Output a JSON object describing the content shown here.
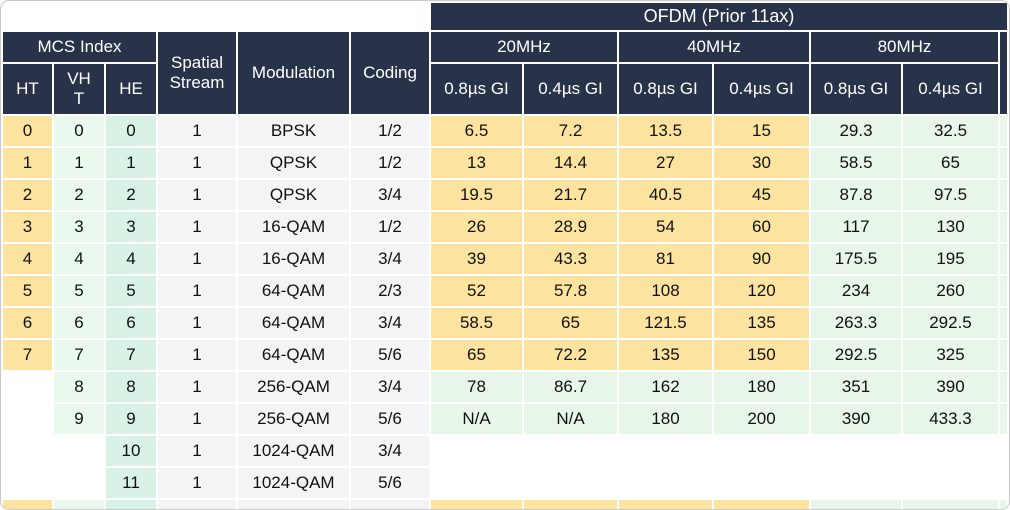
{
  "table": {
    "title_ofdm": "OFDM (Prior 11ax)",
    "mcs_index_label": "MCS Index",
    "col_ht": "HT",
    "col_vht": "VHT",
    "col_he": "HE",
    "col_spatial_stream": "Spatial Stream",
    "col_modulation": "Modulation",
    "col_coding": "Coding",
    "bands": [
      "20MHz",
      "40MHz",
      "80MHz"
    ],
    "gi_labels": [
      "0.8µs GI",
      "0.4µs GI"
    ]
  },
  "rows": [
    {
      "group": "ht",
      "ht": "0",
      "vht": "0",
      "he": "0",
      "ss": "1",
      "mod": "BPSK",
      "coding": "1/2",
      "rates": [
        "6.5",
        "7.2",
        "13.5",
        "15",
        "29.3",
        "32.5"
      ]
    },
    {
      "group": "ht",
      "ht": "1",
      "vht": "1",
      "he": "1",
      "ss": "1",
      "mod": "QPSK",
      "coding": "1/2",
      "rates": [
        "13",
        "14.4",
        "27",
        "30",
        "58.5",
        "65"
      ]
    },
    {
      "group": "ht",
      "ht": "2",
      "vht": "2",
      "he": "2",
      "ss": "1",
      "mod": "QPSK",
      "coding": "3/4",
      "rates": [
        "19.5",
        "21.7",
        "40.5",
        "45",
        "87.8",
        "97.5"
      ]
    },
    {
      "group": "ht",
      "ht": "3",
      "vht": "3",
      "he": "3",
      "ss": "1",
      "mod": "16-QAM",
      "coding": "1/2",
      "rates": [
        "26",
        "28.9",
        "54",
        "60",
        "117",
        "130"
      ]
    },
    {
      "group": "ht",
      "ht": "4",
      "vht": "4",
      "he": "4",
      "ss": "1",
      "mod": "16-QAM",
      "coding": "3/4",
      "rates": [
        "39",
        "43.3",
        "81",
        "90",
        "175.5",
        "195"
      ]
    },
    {
      "group": "ht",
      "ht": "5",
      "vht": "5",
      "he": "5",
      "ss": "1",
      "mod": "64-QAM",
      "coding": "2/3",
      "rates": [
        "52",
        "57.8",
        "108",
        "120",
        "234",
        "260"
      ]
    },
    {
      "group": "ht",
      "ht": "6",
      "vht": "6",
      "he": "6",
      "ss": "1",
      "mod": "64-QAM",
      "coding": "3/4",
      "rates": [
        "58.5",
        "65",
        "121.5",
        "135",
        "263.3",
        "292.5"
      ]
    },
    {
      "group": "ht",
      "ht": "7",
      "vht": "7",
      "he": "7",
      "ss": "1",
      "mod": "64-QAM",
      "coding": "5/6",
      "rates": [
        "65",
        "72.2",
        "135",
        "150",
        "292.5",
        "325"
      ]
    },
    {
      "group": "vht",
      "ht": "",
      "vht": "8",
      "he": "8",
      "ss": "1",
      "mod": "256-QAM",
      "coding": "3/4",
      "rates": [
        "78",
        "86.7",
        "162",
        "180",
        "351",
        "390"
      ]
    },
    {
      "group": "vht",
      "ht": "",
      "vht": "9",
      "he": "9",
      "ss": "1",
      "mod": "256-QAM",
      "coding": "5/6",
      "rates": [
        "N/A",
        "N/A",
        "180",
        "200",
        "390",
        "433.3"
      ]
    },
    {
      "group": "he",
      "ht": "",
      "vht": "",
      "he": "10",
      "ss": "1",
      "mod": "1024-QAM",
      "coding": "3/4",
      "rates": [
        "",
        "",
        "",
        "",
        "",
        ""
      ]
    },
    {
      "group": "he",
      "ht": "",
      "vht": "",
      "he": "11",
      "ss": "1",
      "mod": "1024-QAM",
      "coding": "5/6",
      "rates": [
        "",
        "",
        "",
        "",
        "",
        ""
      ]
    },
    {
      "group": "ht",
      "partial": true,
      "ht": "",
      "vht": "",
      "he": "",
      "ss": "",
      "mod": "",
      "coding": "",
      "rates": [
        "",
        "",
        "",
        "",
        "",
        ""
      ]
    }
  ],
  "colors": {
    "header_navy": "#28334a",
    "ht_yellow": "#fce3a0",
    "vht_palegreen": "#eaf8ee",
    "he_teal": "#d8f2e6",
    "data_green": "#e8f5e9",
    "meta_gray": "#f4f4f6",
    "text": "#111111"
  }
}
